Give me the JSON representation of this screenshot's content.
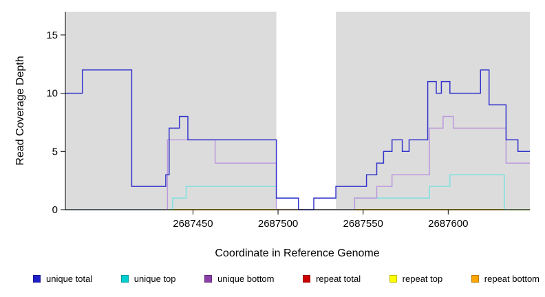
{
  "chart_data": {
    "type": "line",
    "title": "",
    "xlabel": "Coordinate in Reference Genome",
    "ylabel": "Read Coverage Depth",
    "xlim": [
      2687375,
      2687648
    ],
    "ylim": [
      0,
      17
    ],
    "x_ticks": [
      2687450,
      2687500,
      2687550,
      2687600
    ],
    "y_ticks": [
      0,
      5,
      10,
      15
    ],
    "grid": false,
    "legend_position": "bottom",
    "shaded_color": "#DCDCDC",
    "shaded_regions": [
      {
        "x0": 2687375,
        "x1": 2687499
      },
      {
        "x0": 2687534,
        "x1": 2687648
      }
    ],
    "zero_line": {
      "y": 0,
      "color": "#55C055"
    },
    "series": [
      {
        "name": "repeat total",
        "color": "#CD0000",
        "line_color": "#CD0000",
        "underlay": true,
        "points": [
          [
            2687375,
            0
          ],
          [
            2687648,
            0
          ]
        ]
      },
      {
        "name": "repeat top",
        "color": "#FFFF00",
        "line_color": "#FFFF00",
        "underlay": true,
        "points": [
          [
            2687375,
            0
          ],
          [
            2687648,
            0
          ]
        ]
      },
      {
        "name": "repeat bottom",
        "color": "#FFA500",
        "line_color": "#FFA500",
        "underlay": false,
        "points": [
          [
            2687438,
            0
          ],
          [
            2687648,
            0
          ]
        ]
      },
      {
        "name": "unique top",
        "color": "#00CED1",
        "line_color": "#7FE0E0",
        "underlay": false,
        "points": [
          [
            2687375,
            0
          ],
          [
            2687438,
            1
          ],
          [
            2687446,
            2
          ],
          [
            2687499,
            1
          ],
          [
            2687512,
            0
          ],
          [
            2687545,
            1
          ],
          [
            2687589,
            2
          ],
          [
            2687601,
            3
          ],
          [
            2687633,
            0
          ],
          [
            2687648,
            0
          ]
        ]
      },
      {
        "name": "unique bottom",
        "color": "#8B3FA8",
        "line_color": "#BB99DD",
        "underlay": false,
        "points": [
          [
            2687375,
            0
          ],
          [
            2687435,
            6
          ],
          [
            2687463,
            4
          ],
          [
            2687499,
            0
          ],
          [
            2687545,
            1
          ],
          [
            2687558,
            2
          ],
          [
            2687567,
            3
          ],
          [
            2687589,
            7
          ],
          [
            2687597,
            8
          ],
          [
            2687603,
            7
          ],
          [
            2687634,
            4
          ],
          [
            2687648,
            4
          ]
        ]
      },
      {
        "name": "unique total",
        "color": "#1F1FC8",
        "line_color": "#3333CC",
        "underlay": false,
        "points": [
          [
            2687375,
            10
          ],
          [
            2687385,
            12
          ],
          [
            2687414,
            2
          ],
          [
            2687434,
            3
          ],
          [
            2687436,
            7
          ],
          [
            2687442,
            8
          ],
          [
            2687447,
            6
          ],
          [
            2687499,
            1
          ],
          [
            2687512,
            0
          ],
          [
            2687521,
            1
          ],
          [
            2687534,
            2
          ],
          [
            2687552,
            3
          ],
          [
            2687558,
            4
          ],
          [
            2687562,
            5
          ],
          [
            2687567,
            6
          ],
          [
            2687573,
            5
          ],
          [
            2687577,
            6
          ],
          [
            2687588,
            11
          ],
          [
            2687593,
            10
          ],
          [
            2687596,
            11
          ],
          [
            2687601,
            10
          ],
          [
            2687619,
            12
          ],
          [
            2687624,
            9
          ],
          [
            2687634,
            6
          ],
          [
            2687641,
            5
          ],
          [
            2687648,
            5
          ]
        ]
      }
    ]
  },
  "legend": {
    "items": [
      {
        "label": "unique total",
        "color": "#1F1FC8"
      },
      {
        "label": "unique top",
        "color": "#00CED1"
      },
      {
        "label": "unique bottom",
        "color": "#8B3FA8"
      },
      {
        "label": "repeat total",
        "color": "#CD0000"
      },
      {
        "label": "repeat top",
        "color": "#FFFF00"
      },
      {
        "label": "repeat bottom",
        "color": "#FFA500"
      }
    ]
  }
}
